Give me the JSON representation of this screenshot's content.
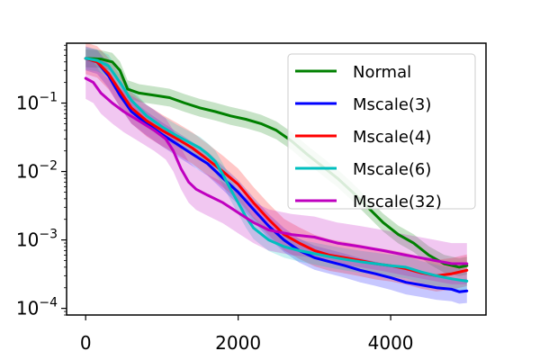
{
  "chart_data": {
    "type": "line",
    "title": "",
    "xlabel": "",
    "ylabel": "",
    "xlim": [
      -250,
      5250
    ],
    "ylim": [
      8e-05,
      0.75
    ],
    "yscale": "log",
    "grid": false,
    "legend_position": "top-right",
    "xticks": [
      {
        "value": 0,
        "label": "0"
      },
      {
        "value": 2000,
        "label": "2000"
      },
      {
        "value": 4000,
        "label": "4000"
      }
    ],
    "yticks": [
      {
        "value": 0.1,
        "base": "10",
        "exp": "−1"
      },
      {
        "value": 0.01,
        "base": "10",
        "exp": "−2"
      },
      {
        "value": 0.001,
        "base": "10",
        "exp": "−3"
      },
      {
        "value": 0.0001,
        "base": "10",
        "exp": "−4"
      }
    ],
    "series": [
      {
        "name": "Normal",
        "color": "#008000",
        "x": [
          0,
          200,
          350,
          450,
          550,
          700,
          900,
          1100,
          1300,
          1500,
          1700,
          1900,
          2100,
          2300,
          2500,
          2700,
          2900,
          3100,
          3300,
          3500,
          3700,
          3900,
          4100,
          4300,
          4500,
          4700,
          4900,
          5000
        ],
        "y": [
          0.45,
          0.44,
          0.4,
          0.3,
          0.16,
          0.14,
          0.13,
          0.12,
          0.1,
          0.085,
          0.075,
          0.065,
          0.058,
          0.05,
          0.04,
          0.028,
          0.018,
          0.012,
          0.008,
          0.005,
          0.003,
          0.0018,
          0.0012,
          0.0009,
          0.0006,
          0.00045,
          0.0004,
          0.00042
        ],
        "band": 1.35
      },
      {
        "name": "Mscale(3)",
        "color": "#0000ff",
        "x": [
          0,
          150,
          300,
          450,
          600,
          800,
          1000,
          1200,
          1400,
          1600,
          1800,
          2000,
          2200,
          2400,
          2600,
          2800,
          3000,
          3200,
          3400,
          3600,
          3800,
          4000,
          4200,
          4400,
          4600,
          4800,
          4900,
          5000
        ],
        "y": [
          0.45,
          0.4,
          0.25,
          0.13,
          0.075,
          0.05,
          0.035,
          0.025,
          0.018,
          0.013,
          0.008,
          0.005,
          0.0028,
          0.0016,
          0.001,
          0.0007,
          0.00055,
          0.00048,
          0.00042,
          0.00036,
          0.00032,
          0.00028,
          0.00024,
          0.00022,
          0.0002,
          0.00019,
          0.000175,
          0.00018
        ],
        "band": 1.5
      },
      {
        "name": "Mscale(4)",
        "color": "#ff0000",
        "x": [
          0,
          150,
          300,
          450,
          600,
          800,
          1000,
          1200,
          1400,
          1600,
          1800,
          2000,
          2200,
          2400,
          2600,
          2800,
          3000,
          3200,
          3400,
          3600,
          3800,
          4000,
          4200,
          4400,
          4600,
          4800,
          5000
        ],
        "y": [
          0.45,
          0.4,
          0.27,
          0.15,
          0.085,
          0.055,
          0.04,
          0.03,
          0.022,
          0.015,
          0.01,
          0.0065,
          0.0035,
          0.002,
          0.0012,
          0.0009,
          0.0007,
          0.0006,
          0.00055,
          0.0005,
          0.00045,
          0.00042,
          0.00038,
          0.00033,
          0.0003,
          0.00032,
          0.00036
        ],
        "band": 1.7
      },
      {
        "name": "Mscale(6)",
        "color": "#00bfbf",
        "x": [
          0,
          150,
          300,
          450,
          600,
          800,
          1000,
          1200,
          1350,
          1500,
          1600,
          1700,
          1800,
          1900,
          2000,
          2100,
          2200,
          2400,
          2600,
          2800,
          3000,
          3200,
          3400,
          3600,
          3800,
          4000,
          4200,
          4400,
          4600,
          4800,
          5000
        ],
        "y": [
          0.45,
          0.42,
          0.35,
          0.2,
          0.11,
          0.065,
          0.045,
          0.033,
          0.027,
          0.022,
          0.018,
          0.014,
          0.009,
          0.0055,
          0.0035,
          0.0022,
          0.0015,
          0.001,
          0.0008,
          0.0007,
          0.00063,
          0.00057,
          0.00052,
          0.00048,
          0.00045,
          0.00042,
          0.0004,
          0.00034,
          0.0003,
          0.00027,
          0.00025
        ],
        "band": 1.45
      },
      {
        "name": "Mscale(32)",
        "color": "#bf00bf",
        "x": [
          0,
          100,
          200,
          350,
          500,
          700,
          900,
          1050,
          1150,
          1250,
          1350,
          1450,
          1600,
          1800,
          2000,
          2200,
          2400,
          2700,
          3000,
          3300,
          3600,
          3900,
          4200,
          4500,
          4800,
          5000
        ],
        "y": [
          0.23,
          0.2,
          0.14,
          0.1,
          0.075,
          0.055,
          0.04,
          0.03,
          0.02,
          0.011,
          0.007,
          0.0055,
          0.0045,
          0.0035,
          0.0025,
          0.0018,
          0.0014,
          0.0012,
          0.0011,
          0.0009,
          0.0008,
          0.0007,
          0.0006,
          0.00052,
          0.00045,
          0.00045
        ],
        "band": 2.0
      }
    ]
  }
}
